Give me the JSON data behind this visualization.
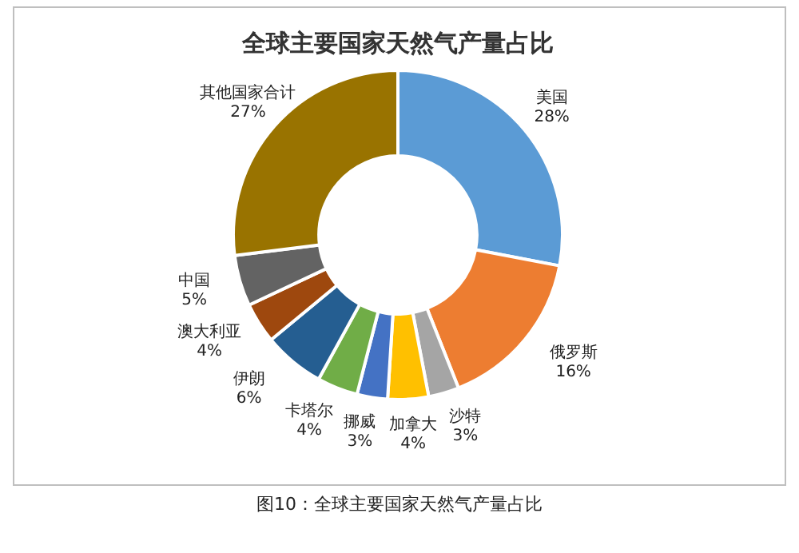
{
  "chart_data": {
    "type": "donut",
    "title": "全球主要国家天然气产量占比",
    "categories": [
      "美国",
      "俄罗斯",
      "沙特",
      "加拿大",
      "挪威",
      "卡塔尔",
      "伊朗",
      "澳大利亚",
      "中国",
      "其他国家合计"
    ],
    "values": [
      28,
      16,
      3,
      4,
      3,
      4,
      6,
      4,
      5,
      27
    ],
    "value_labels": [
      "28%",
      "16%",
      "3%",
      "4%",
      "3%",
      "4%",
      "6%",
      "4%",
      "5%",
      "27%"
    ],
    "colors": [
      "#5b9bd5",
      "#ed7d31",
      "#a5a5a5",
      "#ffc000",
      "#4472c4",
      "#70ad47",
      "#255e91",
      "#9e480e",
      "#636363",
      "#997300"
    ],
    "legend": false,
    "annotations": [
      "图10：全球主要国家天然气产量占比"
    ]
  }
}
